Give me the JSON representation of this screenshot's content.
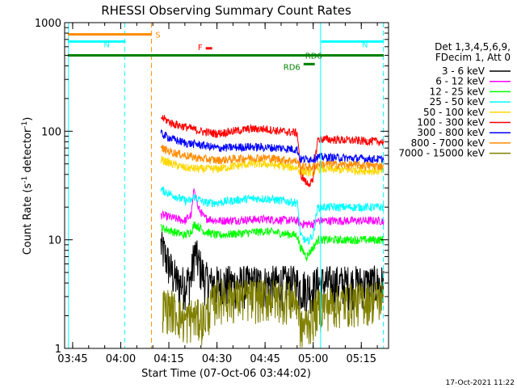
{
  "chart_data": {
    "type": "line",
    "title": "RHESSI Observing Summary Count Rates",
    "xlabel": "Start Time (07-Oct-06 03:44:02)",
    "ylabel_main": "Count Rate (s",
    "ylabel_sup1": "-1",
    "ylabel_mid": " detector",
    "ylabel_sup2": "-1",
    "ylabel_end": ")",
    "yscale": "log",
    "ylim": [
      1,
      1000
    ],
    "xlim_minutes": [
      222.5,
      323.5
    ],
    "xticks": [
      {
        "label": "03:45",
        "minute": 225
      },
      {
        "label": "04:00",
        "minute": 240
      },
      {
        "label": "04:15",
        "minute": 255
      },
      {
        "label": "04:30",
        "minute": 270
      },
      {
        "label": "04:45",
        "minute": 285
      },
      {
        "label": "05:00",
        "minute": 300
      },
      {
        "label": "05:15",
        "minute": 315
      }
    ],
    "yticks": [
      {
        "label": "1",
        "value": 1
      },
      {
        "label": "10",
        "value": 10
      },
      {
        "label": "100",
        "value": 100
      },
      {
        "label": "1000",
        "value": 1000
      }
    ],
    "legend_header": [
      "Det 1,3,4,5,6,9,",
      "FDecim 1, Att 0"
    ],
    "series": [
      {
        "name": "3 - 6 keV",
        "color": "#000000",
        "points": [
          [
            252.5,
            9
          ],
          [
            254,
            7
          ],
          [
            256,
            5
          ],
          [
            258,
            4
          ],
          [
            260,
            4
          ],
          [
            262,
            4.5
          ],
          [
            263,
            8
          ],
          [
            264,
            6.5
          ],
          [
            266,
            4.5
          ],
          [
            268,
            4
          ],
          [
            280,
            4
          ],
          [
            295,
            4
          ],
          [
            296,
            3.7
          ],
          [
            300,
            3.7
          ],
          [
            301.5,
            4
          ],
          [
            322,
            4
          ]
        ]
      },
      {
        "name": "6 - 12 keV",
        "color": "#ff00ff",
        "points": [
          [
            252.5,
            17
          ],
          [
            256,
            16
          ],
          [
            260,
            15
          ],
          [
            262,
            17
          ],
          [
            263,
            30
          ],
          [
            264,
            20
          ],
          [
            266,
            16
          ],
          [
            270,
            15
          ],
          [
            285,
            15.5
          ],
          [
            295,
            15
          ],
          [
            296,
            14
          ],
          [
            300,
            14
          ],
          [
            301.5,
            15
          ],
          [
            322,
            15
          ]
        ]
      },
      {
        "name": "12 - 25 keV",
        "color": "#00ff00",
        "points": [
          [
            252.5,
            13
          ],
          [
            256,
            12
          ],
          [
            260,
            11
          ],
          [
            262,
            12
          ],
          [
            263,
            14
          ],
          [
            266,
            12
          ],
          [
            270,
            11
          ],
          [
            285,
            12
          ],
          [
            295,
            11
          ],
          [
            296,
            8.5
          ],
          [
            298,
            7
          ],
          [
            300,
            8.5
          ],
          [
            301.5,
            10
          ],
          [
            322,
            10
          ]
        ]
      },
      {
        "name": "25 - 50 keV",
        "color": "#00ffff",
        "points": [
          [
            252.5,
            29
          ],
          [
            256,
            26
          ],
          [
            260,
            23
          ],
          [
            262,
            23
          ],
          [
            263,
            25
          ],
          [
            266,
            22
          ],
          [
            270,
            22
          ],
          [
            280,
            24
          ],
          [
            285,
            24
          ],
          [
            290,
            23
          ],
          [
            295,
            22
          ],
          [
            296,
            11
          ],
          [
            298,
            9.5
          ],
          [
            300,
            11
          ],
          [
            301.5,
            20
          ],
          [
            322,
            20
          ]
        ]
      },
      {
        "name": "50 - 100 keV",
        "color": "#ffd700",
        "points": [
          [
            252.5,
            55
          ],
          [
            256,
            50
          ],
          [
            260,
            46
          ],
          [
            265,
            45
          ],
          [
            270,
            45
          ],
          [
            280,
            50
          ],
          [
            285,
            50
          ],
          [
            290,
            48
          ],
          [
            295,
            46
          ],
          [
            296,
            42
          ],
          [
            300,
            42
          ],
          [
            301.5,
            45
          ],
          [
            322,
            43
          ]
        ]
      },
      {
        "name": "100 - 300 keV",
        "color": "#ff0000",
        "points": [
          [
            252.5,
            135
          ],
          [
            256,
            118
          ],
          [
            260,
            110
          ],
          [
            265,
            100
          ],
          [
            270,
            95
          ],
          [
            280,
            105
          ],
          [
            285,
            105
          ],
          [
            290,
            100
          ],
          [
            295,
            97
          ],
          [
            296,
            40
          ],
          [
            298,
            33
          ],
          [
            300,
            34
          ],
          [
            301.5,
            85
          ],
          [
            322,
            80
          ]
        ]
      },
      {
        "name": "300 - 800 keV",
        "color": "#0000ff",
        "points": [
          [
            252.5,
            95
          ],
          [
            256,
            85
          ],
          [
            260,
            78
          ],
          [
            265,
            75
          ],
          [
            270,
            70
          ],
          [
            280,
            72
          ],
          [
            290,
            70
          ],
          [
            295,
            68
          ],
          [
            296,
            55
          ],
          [
            300,
            56
          ],
          [
            301.5,
            58
          ],
          [
            322,
            55
          ]
        ]
      },
      {
        "name": "800 - 7000 keV",
        "color": "#ff8c00",
        "points": [
          [
            252.5,
            70
          ],
          [
            256,
            64
          ],
          [
            260,
            60
          ],
          [
            265,
            56
          ],
          [
            270,
            54
          ],
          [
            280,
            57
          ],
          [
            285,
            57
          ],
          [
            290,
            55
          ],
          [
            295,
            53
          ],
          [
            296,
            47
          ],
          [
            300,
            47
          ],
          [
            301.5,
            50
          ],
          [
            322,
            48
          ]
        ]
      },
      {
        "name": "7000 - 15000 keV",
        "color": "#808000",
        "points": [
          [
            253,
            2.5
          ],
          [
            256,
            2.4
          ],
          [
            260,
            1.8
          ],
          [
            262,
            2
          ],
          [
            266,
            1.9
          ],
          [
            270,
            3
          ],
          [
            280,
            3
          ],
          [
            290,
            3
          ],
          [
            295,
            2.8
          ],
          [
            296,
            1.5
          ],
          [
            300,
            2
          ],
          [
            301.5,
            2.5
          ],
          [
            322,
            3
          ]
        ]
      }
    ],
    "flags": [
      {
        "label": "S",
        "color": "#ff8c00",
        "x0": 223.5,
        "x1": 249.5,
        "value": 780
      },
      {
        "label": "N",
        "color": "#00ffff",
        "x0": 223.5,
        "x1": 241.5,
        "value": 670
      },
      {
        "label": "N",
        "color": "#00ffff",
        "x0": 302.5,
        "x1": 322,
        "value": 670
      },
      {
        "label": "F",
        "color": "#ff0000",
        "x0": 266.5,
        "x1": 268.5,
        "value": 580
      },
      {
        "label": "RD6",
        "color": "#008000",
        "x0": 223.5,
        "x1": 322,
        "value": 500
      },
      {
        "label": "RD6",
        "color": "#008000",
        "x0": 297,
        "x1": 300.5,
        "value": 415
      }
    ],
    "vlines": [
      {
        "minute": 223.7,
        "color": "#00ffff",
        "style": "solid"
      },
      {
        "minute": 241.2,
        "color": "#00ffff",
        "style": "dashed"
      },
      {
        "minute": 249.6,
        "color": "#ff8c00",
        "style": "dashed"
      },
      {
        "minute": 302.3,
        "color": "#00ffff",
        "style": "solid"
      },
      {
        "minute": 321.9,
        "color": "#00ffff",
        "style": "dashed"
      }
    ],
    "timestamp": "17-Oct-2021 11:22"
  }
}
